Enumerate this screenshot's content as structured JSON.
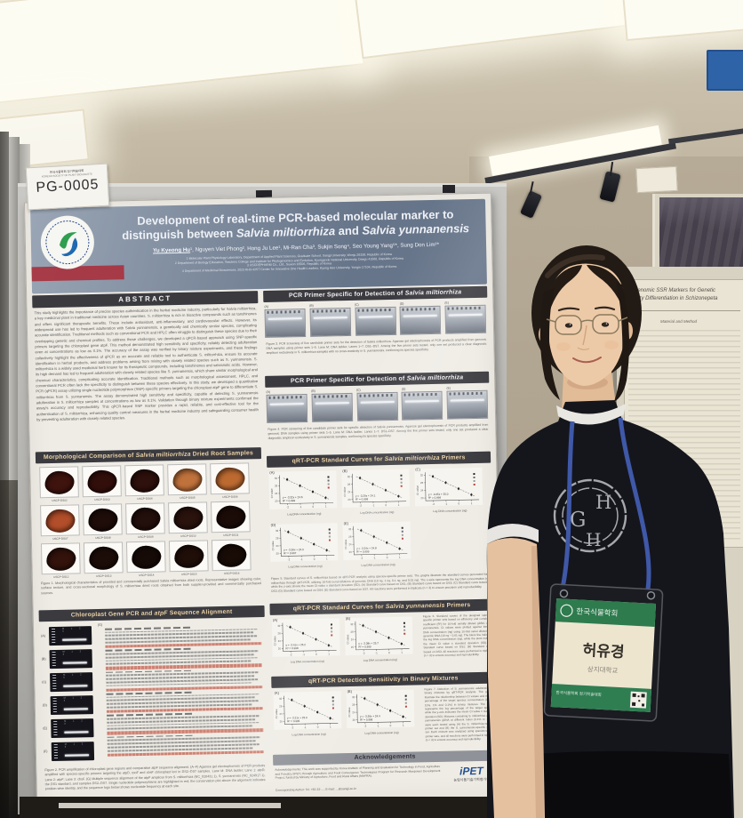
{
  "photo_labels": {
    "event_line1": "한국식물학회 정기학술대회",
    "event_line2": "KOREAN SOCIETY OF PLANT BIOLOGISTS",
    "code": "PG-0005"
  },
  "poster": {
    "title": {
      "line1": "Development of real-time PCR-based molecular marker to",
      "line2_pre": "distinguish between ",
      "line2_sp1": "Salvia miltiorrhiza",
      "line2_mid": " and ",
      "line2_sp2": "Salvia yunnanensis"
    },
    "authors": {
      "first": "Yu Kyeong Hu",
      "rest": "¹, Nguyen Viet Phong², Hong Ju Lee¹, Mi-Ran Cha³, Sukjin Song⁴, Seo Young Yang⁵*, Sung Don Lim¹*"
    },
    "affiliations": [
      "1 Molecular Plant Physiology Laboratory, Department of Applied Plant Sciences, Graduate School, Sangji University, Wonju 26339, Republic of Korea",
      "2 Department of Biology Education, Teachers College and Institute for Phylogenomics and Evolution, Kyungpook National University, Daegu 41566, Republic of Korea",
      "3 USCREPHARM Co., Ltd., Suwon 16506, Republic of Korea",
      "4 Department of Medicinal Biosciences, 2023 KHU-KIST Center for Innovative One Health Leaders, Kyung Hee University, Yongin 17104, Republic of Korea"
    ],
    "abstract": {
      "header": "ABSTRACT",
      "text": "This study highlights the importance of precise species authentication in the herbal medicine industry, particularly for Salvia miltiorrhiza, a key medicinal plant in traditional medicine across Asian countries. S. miltiorrhiza is rich in bioactive compounds such as tanshinones and offers significant therapeutic benefits. These include antioxidant, anti-inflammatory, and cardiovascular effects. However, its widespread use has led to frequent adulteration with Salvia yunnanensis, a genetically and chemically similar species, complicating accurate identification. Traditional methods such as conventional PCR and HPLC often struggle to distinguish these species due to their overlapping genetic and chemical profiles. To address these challenges, we developed a qPCR-based approach using SNP-specific primers targeting the chloroplast gene atpF. This method demonstrated high sensitivity and specificity, reliably detecting adulteration even at concentrations as low as 0.1%. The accuracy of the assay was verified by binary mixture experiments, and these findings collectively highlight the effectiveness of qPCR as an accurate and reliable tool to authenticate S. miltiorrhiza, ensure its accurate identification in herbal products, and address problems arising from mixing with closely related species such as S. yunnanensis. S. miltiorrhiza is a widely used medicinal herb known for its therapeutic compounds, including tanshinones and salvianolic acids. However, its high demand has led to frequent adulteration with closely related species like S. yunnanensis, which share similar morphological and chemical characteristics, complicating accurate identification. Traditional methods such as morphological assessment, HPLC, and conventional PCR often lack the specificity to distinguish between these species effectively. In this study, we developed a quantitative PCR (qPCR) assay utilizing single nucleotide polymorphism (SNP)-specific primers targeting the chloroplast atpF gene to differentiate S. miltiorrhiza from S. yunnanensis. The assay demonstrated high sensitivity and specificity, capable of detecting S. yunnanensis adulteration in S. miltiorrhiza samples at concentrations as low as 0.1%. Validation through binary mixture experiments confirmed the assay's accuracy and reproducibility. This qPCR-based SNP marker provides a rapid, reliable, and cost-effective tool for the authentication of S. miltiorrhiza, enhancing quality control measures in the herbal medicine industry and safeguarding consumer health by preventing adulteration with closely related species."
    },
    "morph": {
      "header_pre": "Morphological Comparison of ",
      "header_sp": "Salvia miltiorrhiza",
      "header_post": " Dried Root Samples",
      "samples": [
        {
          "label": "USCP-DS02",
          "color": "#40140e"
        },
        {
          "label": "USCP-DS03",
          "color": "#330f0b"
        },
        {
          "label": "USCP-DS04",
          "color": "#2e100c"
        },
        {
          "label": "USCP-DS05",
          "color": "#c0723c"
        },
        {
          "label": "USCP-DS06",
          "color": "#bd6a31"
        },
        {
          "label": "USCP-DS07",
          "color": "#b24e2a"
        },
        {
          "label": "USCP-DS08",
          "color": "#1f0d09"
        },
        {
          "label": "USCP-DS09",
          "color": "#230f0b"
        },
        {
          "label": "USCP-DS10",
          "color": "#2a120d"
        },
        {
          "label": "USCP-DS11",
          "color": "#1c0c08"
        },
        {
          "label": "USCP-DS12",
          "color": "#33130c"
        },
        {
          "label": "USCP-DS13",
          "color": "#1d0d09"
        },
        {
          "label": "USCP-DS14",
          "color": "#170b07"
        },
        {
          "label": "USCP-DS15",
          "color": "#200e09"
        },
        {
          "label": "USCP-DS16",
          "color": "#190c07"
        }
      ],
      "caption": "Figure 1. Morphological characteristics of provided and commercially purchased Salvia miltiorrhiza dried roots. Representative images showing color, surface texture, and cross-sectional morphology of S. miltiorrhiza dried roots obtained from both supplier-provided and commercially purchased sources."
    },
    "chloro": {
      "header_pre": "Chloroplast Gene PCR and ",
      "header_it": "atpF",
      "header_post": " Sequence Alignment",
      "gel_panels": [
        "(A)",
        "(B)",
        "(C)",
        "(D)",
        "(E)",
        "(F)"
      ],
      "gel_lanes": "M 1 2 3",
      "alignment_label": "(G)",
      "caption": "Figure 2. PCR amplification of chloroplast gene regions and comparative atpF sequence alignment. (A–F) Agarose gel electrophoresis of PCR products amplified with species-specific primers targeting the atpD, rpoF and cbsF chloroplast loci in DS2–DS7 samples. Lane M: DNA ladder; Lane 1: atpD; Lane 2: atpF; Lane 3: cbsF. (G) Multiple sequence alignment of the atpF amplicon from S. miltiorrhiza (NC_020431.1), S. yunnanensis (NC_024917.1), the DS1 standard, and samples DS2–DS7. Single nucleotide polymorphisms are highlighted in red; the conservation plot above the alignment indicates position-wise identity, and the sequence logo below shows nucleotide frequency at each site."
    },
    "pcr1": {
      "header_pre": "PCR Primer Specific for Detection of ",
      "header_sp": "Salvia miltiorrhiza",
      "panels": [
        "(A)",
        "(B)",
        "(C)",
        "(D)",
        "(E)"
      ],
      "caption": "Figure 3. PCR screening of five candidate primer sets for the detection of Salvia miltiorrhiza. Agarose gel electrophoresis of PCR products amplified from genomic DNA samples using primer sets 1–5. Lane M: DNA ladder; Lanes 1–7: DS1–DS7. Among the five primer sets tested, only one set produced a clear diagnostic amplicon exclusively in S. miltiorrhiza samples with no cross-reactivity in S. yunnanensis, confirming its species specificity."
    },
    "pcr2": {
      "header_pre": "PCR Primer Specific for Detection of ",
      "header_sp": "Salvia miltiorrhiza",
      "panels": [
        "(A)",
        "(B)",
        "(C)",
        "(D)",
        "(E)"
      ],
      "caption": "Figure 4. PCR screening of five candidate primer sets for specific detection of Salvia yunnanensis. Agarose gel electrophoresis of PCR products amplified from genomic DNA samples using primer sets 1–5. Lane M: DNA ladder; Lanes 1–7: DS1–DS7. Among the five primer sets tested, only one set produced a clear diagnostic amplicon exclusively in S. yunnanensis samples, confirming its species specificity."
    },
    "qpcr_m": {
      "header_pre": "qRT-PCR Standard Curves for ",
      "header_sp": "Salvia miltiorrhiza",
      "header_post": " Primers",
      "xlabel": "Log DNA concentration (ng)",
      "ylabel": "Ct value",
      "plots": [
        {
          "letter": "(A)",
          "eq1": "y = -3.32x + 24.6",
          "eq2": "R² = 0.999"
        },
        {
          "letter": "(B)",
          "eq1": "y = -3.29x + 24.1",
          "eq2": "R² = 0.998"
        },
        {
          "letter": "(C)",
          "eq1": "y = -3.35x + 25.0",
          "eq2": "R² = 0.999"
        },
        {
          "letter": "(D)",
          "eq1": "y = -3.30x + 24.3",
          "eq2": "R² = 0.997"
        },
        {
          "letter": "(E)",
          "eq1": "y = -3.34x + 24.8",
          "eq2": "R² = 0.999"
        }
      ],
      "caption": "Figure 5. Standard curves of S. miltiorrhiza based on qRT-PCR analysis using species-specific primer sets. The graphs illustrate the standard curves generated for S. miltiorrhiza through qRT-PCR, utilizing 10-fold serial dilutions of genomic DNA (10 ng, 1 ng, 0.1 ng, and 0.01 ng). The x-axis represents the log DNA concentration (ng), while the y-axis shows the mean Ct value ± standard deviation (SD). (A) Standard curve based on DS1; (B) Standard curve based on DS2; (C) Standard curve based on DS3; (D) Standard curve based on DS4; (E) Standard curve based on DS7. All reactions were performed in triplicate (n = 3) to ensure precision and reproducibility."
    },
    "qpcr_y": {
      "header_pre": "qRT-PCR Standard Curves for ",
      "header_sp": "Salvia yunnanensis",
      "header_post": " Primers",
      "xlabel": "Log DNA concentration (ng)",
      "ylabel": "Ct value",
      "plots": [
        {
          "letter": "(A)",
          "eq1": "y = -3.41x + 26.2",
          "eq2": "R² = 0.998"
        },
        {
          "letter": "(B)",
          "eq1": "y = -3.38x + 25.7",
          "eq2": "R² = 0.999"
        }
      ],
      "caption": "Figure 6. Standard curves of the designed species-specific primer sets based on efficiency and correlation coefficient (R²) for 10-fold serially diluted gDNA of S. yunnanensis. Ct values were plotted against the log DNA concentration (ng) using 10-fold serial dilutions of genomic DNA (10 ng – 0.01 ng). The black line indicates the log DNA concentration (ng), while the plots indicate the mean Ct value ± standard deviation (SD). (A) Standard curve based on DS2; (B) Standard curve based on DS3. All reactions were performed in triplicate (n = 3) to ensure accuracy and reproducibility."
    },
    "binary": {
      "header": "qRT-PCR Detection Sensitivity in Binary Mixtures",
      "xlabel": "Log DNA concentration (ng)",
      "ylabel": "Ct value",
      "plots": [
        {
          "letter": "(A)",
          "eq1": "y = -3.21x + 23.9",
          "eq2": "R² = 0.995"
        },
        {
          "letter": "(B)",
          "eq1": "y = -3.26x + 24.4",
          "eq2": "R² = 0.996"
        }
      ],
      "caption": "Figure 7. Detection of S. yunnanensis adulteration in binary mixtures by qRT-PCR analysis. The graphs illustrate the relationship between Ct values and the log percentage of the target species concentration (100%, 10%, 1% and 0.1%) in binary mixtures. The x-axis represents the log percentage of the target species, while the y-axis indicates the mean Ct value ± standard deviation (SD). Mixtures containing S. miltiorrhiza and S. yunnanensis gDNA at different ratios (0.1% to 100%) were each tested using (A) the S. miltiorrhiza-specific primer set and (B) the S. yunnanensis-specific primer set. Each mixture was analyzed using species-specific primer sets, and all reactions were performed in triplicate (n = 3) to ensure accuracy and reproducibility."
    },
    "ack": {
      "header": "Acknowledgements",
      "text": "Acknowledgements: This work was supported by Korea Institute of Planning and Evaluation for Technology in Food, Agriculture and Forestry (IPET) through Agriculture and Food Convergence Technologies Program for Research Manpower Development Project, funded by Ministry of Agriculture, Food and Rural Affairs (MAFRA).",
      "contact": "Corresponding Author: Tel. +82-33-…, E-mail: …@sangji.ac.kr",
      "logo_text": "iPET",
      "logo_sub": "농림식품기술기획평가원"
    }
  },
  "plot_points": [
    [
      -2,
      31.2
    ],
    [
      -1,
      27.8
    ],
    [
      0,
      24.5
    ],
    [
      1,
      21.2
    ]
  ],
  "badge": {
    "society": "한국식물학회",
    "name": "허유경",
    "affiliation": "상지대학교",
    "footer": "한국식물학회 정기학술대회"
  },
  "shirt_monogram": {
    "top": "H",
    "left": "G",
    "bottom": "H"
  },
  "neighbor": {
    "line1": "of Genomic SSR Markers for Genetic",
    "line2": "Variety Differentiation in Schizonepeta",
    "section": "Material and Method"
  },
  "colors": {
    "poster_header": "#7a879a",
    "section_bar": "#3a3a3f",
    "warm_header_text": "#ecd2a6",
    "ribbon_red": "#a8303c",
    "badge_green": "#2e7b4e",
    "lanyard_blue": "#3f58a8",
    "sign_blue": "#2e63a8"
  }
}
